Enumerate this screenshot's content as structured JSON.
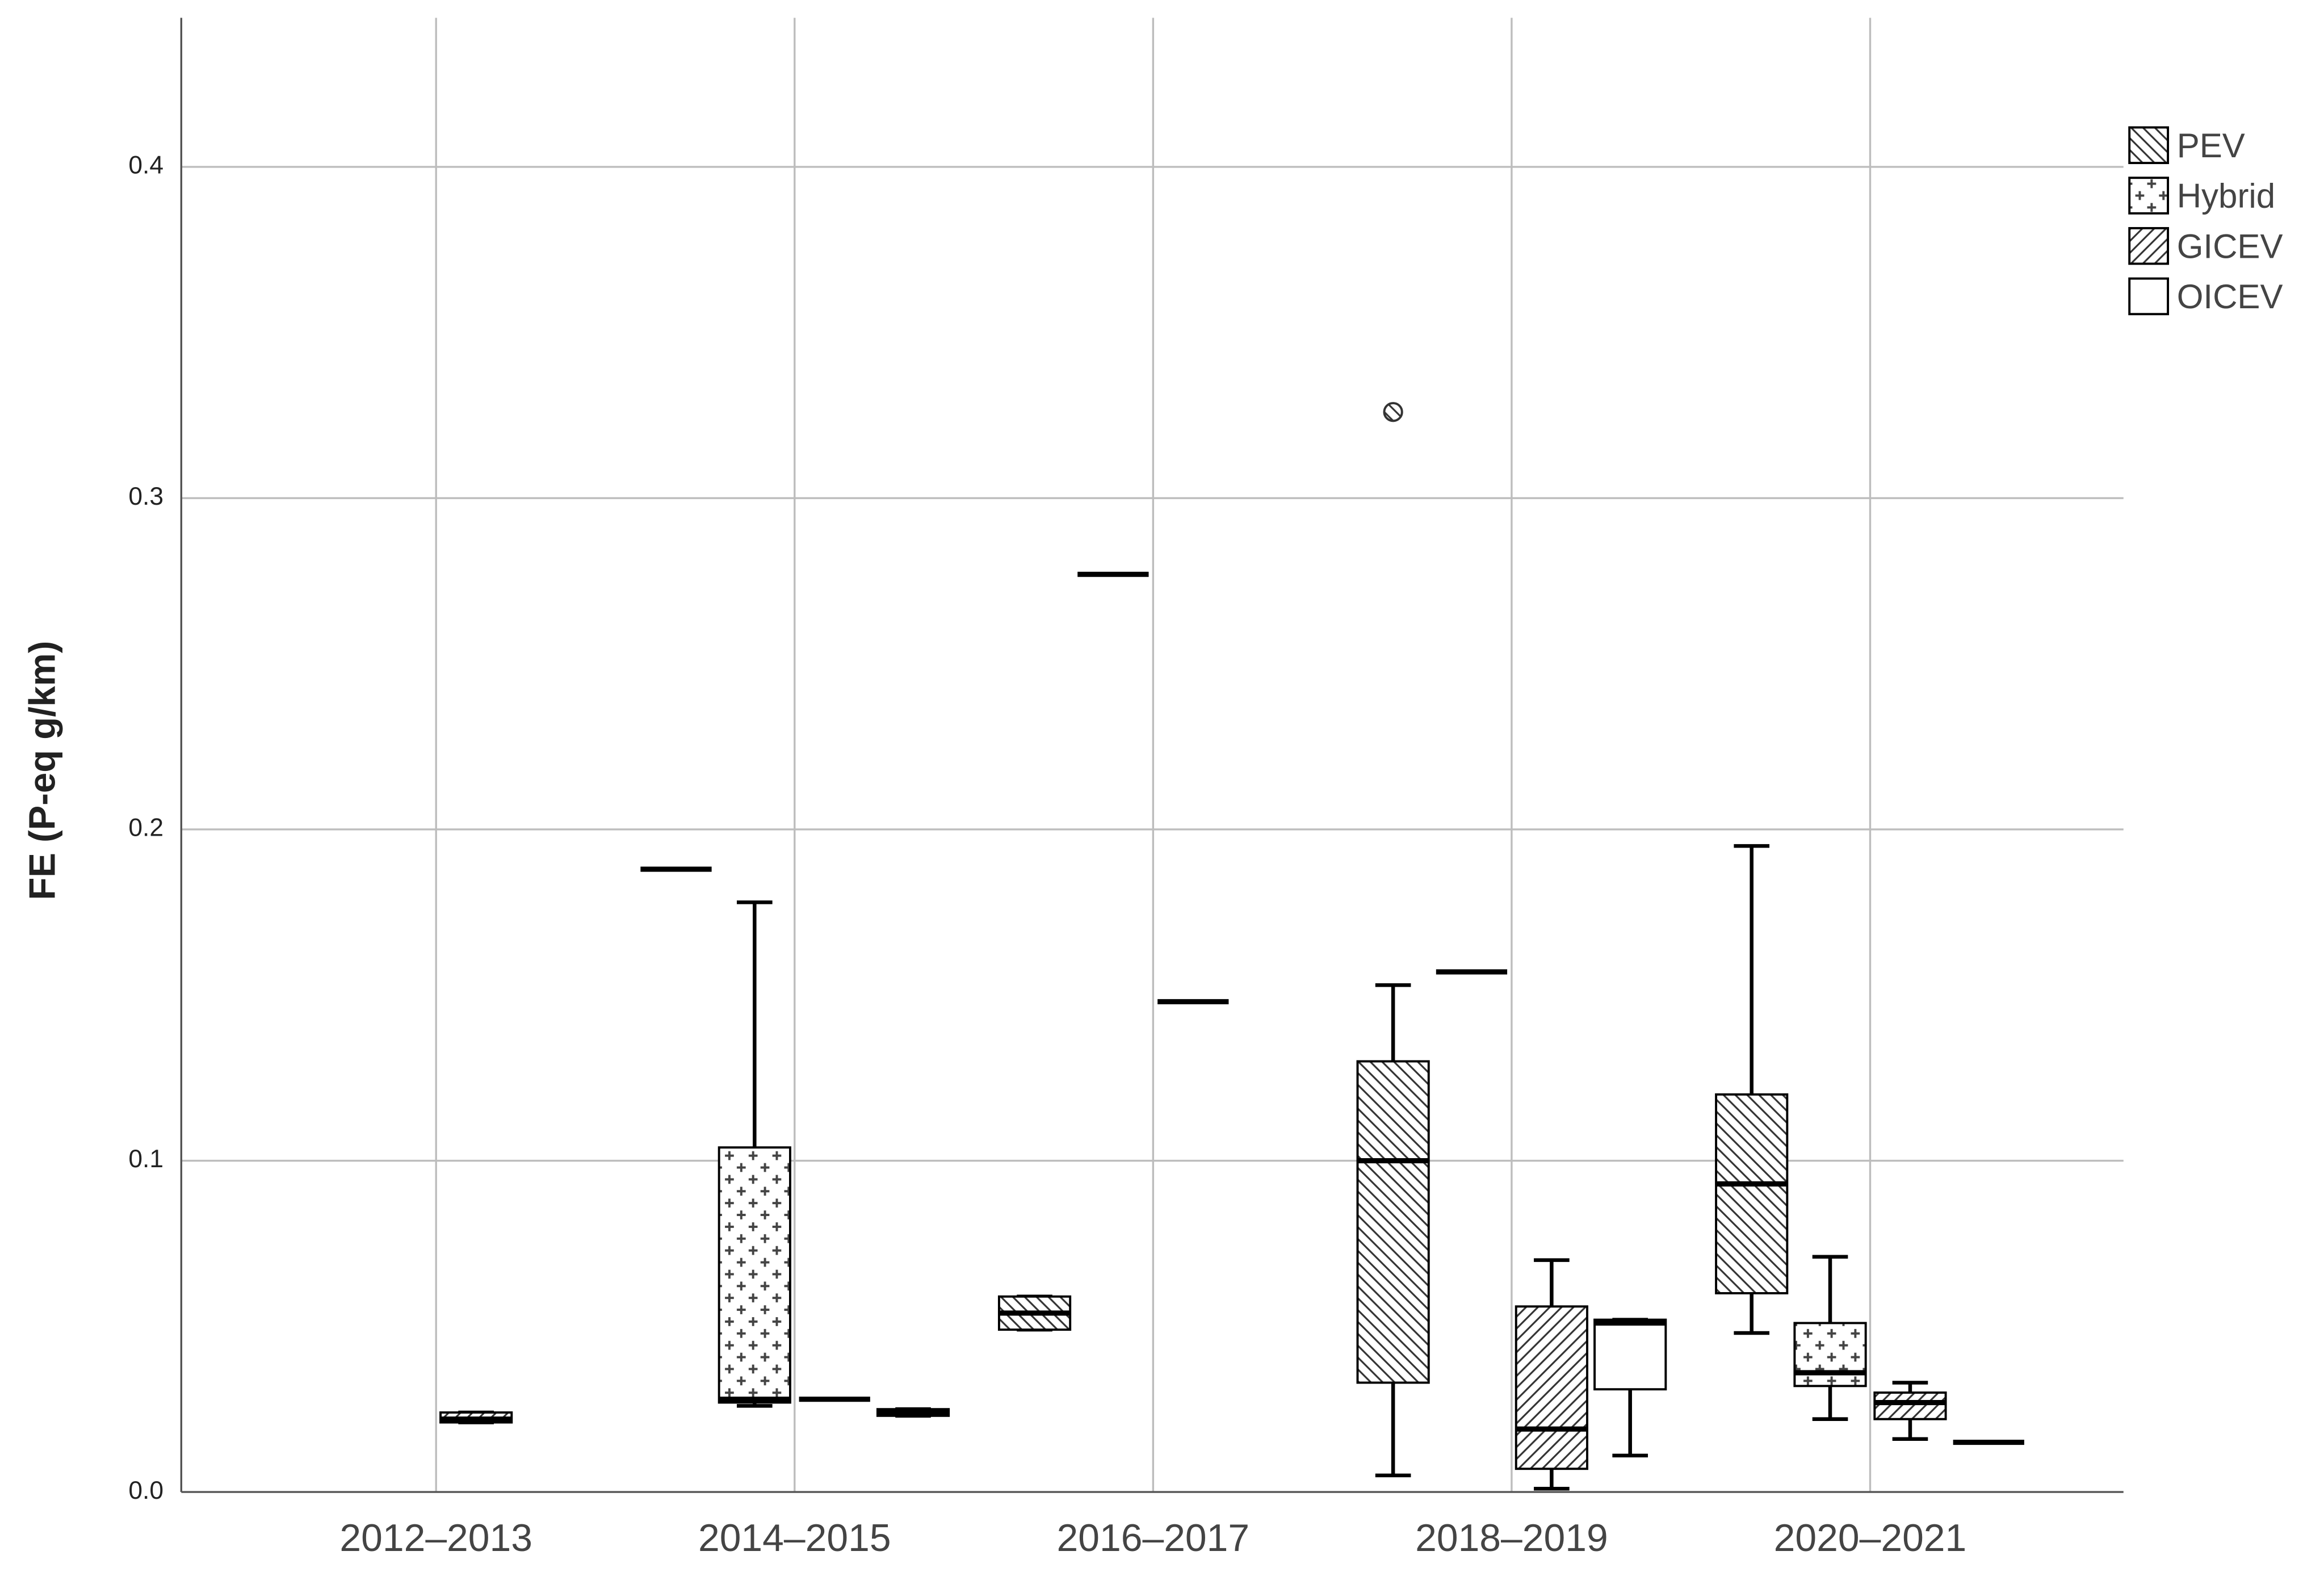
{
  "chart_data": {
    "type": "box",
    "y_label": "FE  (P-eq g/km)",
    "categories": [
      "2012–2013",
      "2014–2015",
      "2016–2017",
      "2018–2019",
      "2020–2021"
    ],
    "ylim": [
      0,
      0.445
    ],
    "yticks": [
      {
        "value": 0,
        "label": "0.0"
      },
      0.1,
      0.2,
      0.3,
      0.4
    ],
    "grid": true,
    "legend": "top-right",
    "series": [
      {
        "name": "PEV",
        "color": "#000000",
        "pattern": "back-hatch",
        "values": [
          null,
          [
            0.188,
            0.188,
            0.188,
            0.188,
            0.188
          ],
          [
            0.049,
            0.049,
            0.054,
            0.059,
            0.059
          ],
          [
            0.005,
            0.033,
            0.1,
            0.13,
            0.153
          ],
          [
            0.048,
            0.06,
            0.093,
            0.12,
            0.195
          ]
        ],
        "outliers": [
          null,
          null,
          null,
          [
            0.326
          ],
          null
        ]
      },
      {
        "name": "Hybrid",
        "color": "#000000",
        "pattern": "cross",
        "values": [
          null,
          [
            0.026,
            0.027,
            0.028,
            0.104,
            0.178
          ],
          [
            0.277,
            0.277,
            0.277,
            0.277,
            0.277
          ],
          [
            0.157,
            0.157,
            0.157,
            0.157,
            0.157
          ],
          [
            0.022,
            0.032,
            0.036,
            0.051,
            0.071
          ]
        ],
        "outliers": [
          null,
          null,
          null,
          null,
          null
        ]
      },
      {
        "name": "GICEV",
        "color": "#000000",
        "pattern": "hatch",
        "values": [
          [
            0.021,
            0.021,
            0.022,
            0.024,
            0.024
          ],
          [
            0.028,
            0.028,
            0.028,
            0.028,
            0.028
          ],
          [
            0.148,
            0.148,
            0.148,
            0.148,
            0.148
          ],
          [
            0.001,
            0.007,
            0.019,
            0.056,
            0.07
          ],
          [
            0.016,
            0.022,
            0.027,
            0.03,
            0.033
          ]
        ],
        "outliers": [
          null,
          null,
          null,
          null,
          null
        ]
      },
      {
        "name": "OICEV",
        "color": "#000000",
        "pattern": "none",
        "values": [
          null,
          [
            0.023,
            0.023,
            0.024,
            0.025,
            0.025
          ],
          null,
          [
            0.011,
            0.031,
            0.051,
            0.052,
            0.052
          ],
          [
            0.015,
            0.015,
            0.015,
            0.015,
            0.015
          ]
        ],
        "outliers": [
          null,
          null,
          null,
          null,
          null
        ]
      }
    ]
  }
}
